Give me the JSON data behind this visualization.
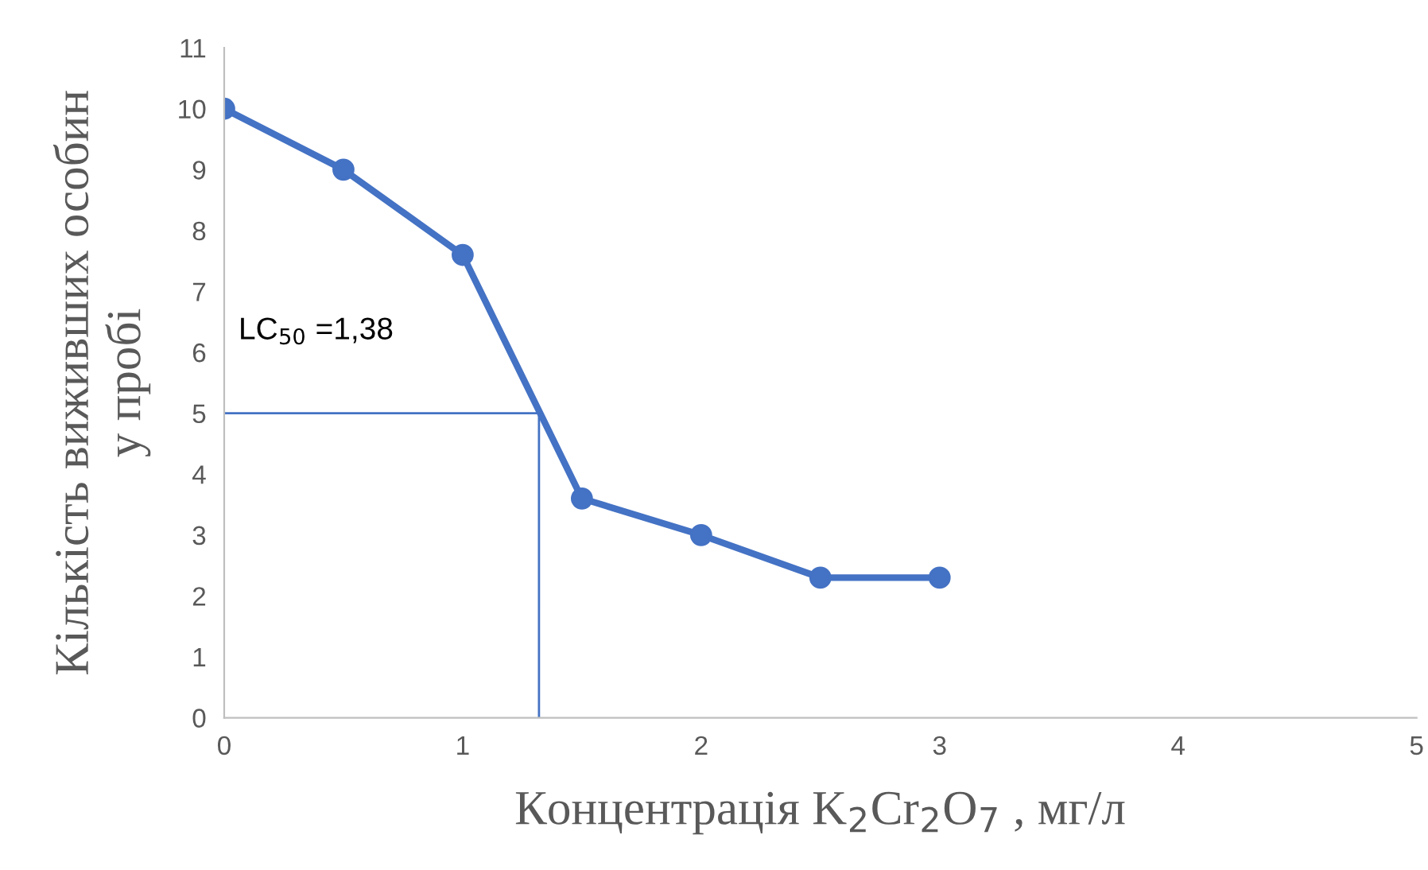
{
  "chart_data": {
    "type": "line",
    "xlabel": "Концентрація K$_{2}$Cr$_{2}$O$_{7}$ , мг/л",
    "ylabel": "Кількість виживших особин\nу пробі",
    "series": [
      {
        "x": [
          0,
          0.5,
          1,
          1.5,
          2,
          2.5,
          3
        ],
        "values": [
          10,
          9,
          7.6,
          3.6,
          3,
          2.3,
          2.3
        ],
        "color": "#4472c4",
        "marker": "circle"
      },
      {
        "x": [
          0,
          1.32,
          1.32
        ],
        "values": [
          5,
          5,
          0
        ],
        "color": "#4472c4",
        "marker": "none"
      }
    ],
    "annotations": [
      "LC$_{50}$ =1,38"
    ],
    "xlim": [
      0,
      5
    ],
    "xticks": [
      0,
      1,
      2,
      3,
      4,
      5
    ],
    "ylim": [
      0,
      11
    ],
    "yticks": [
      0,
      1,
      2,
      3,
      4,
      5,
      6,
      7,
      8,
      9,
      10,
      11
    ],
    "grid": false,
    "legend": false,
    "line_style": "solid"
  }
}
